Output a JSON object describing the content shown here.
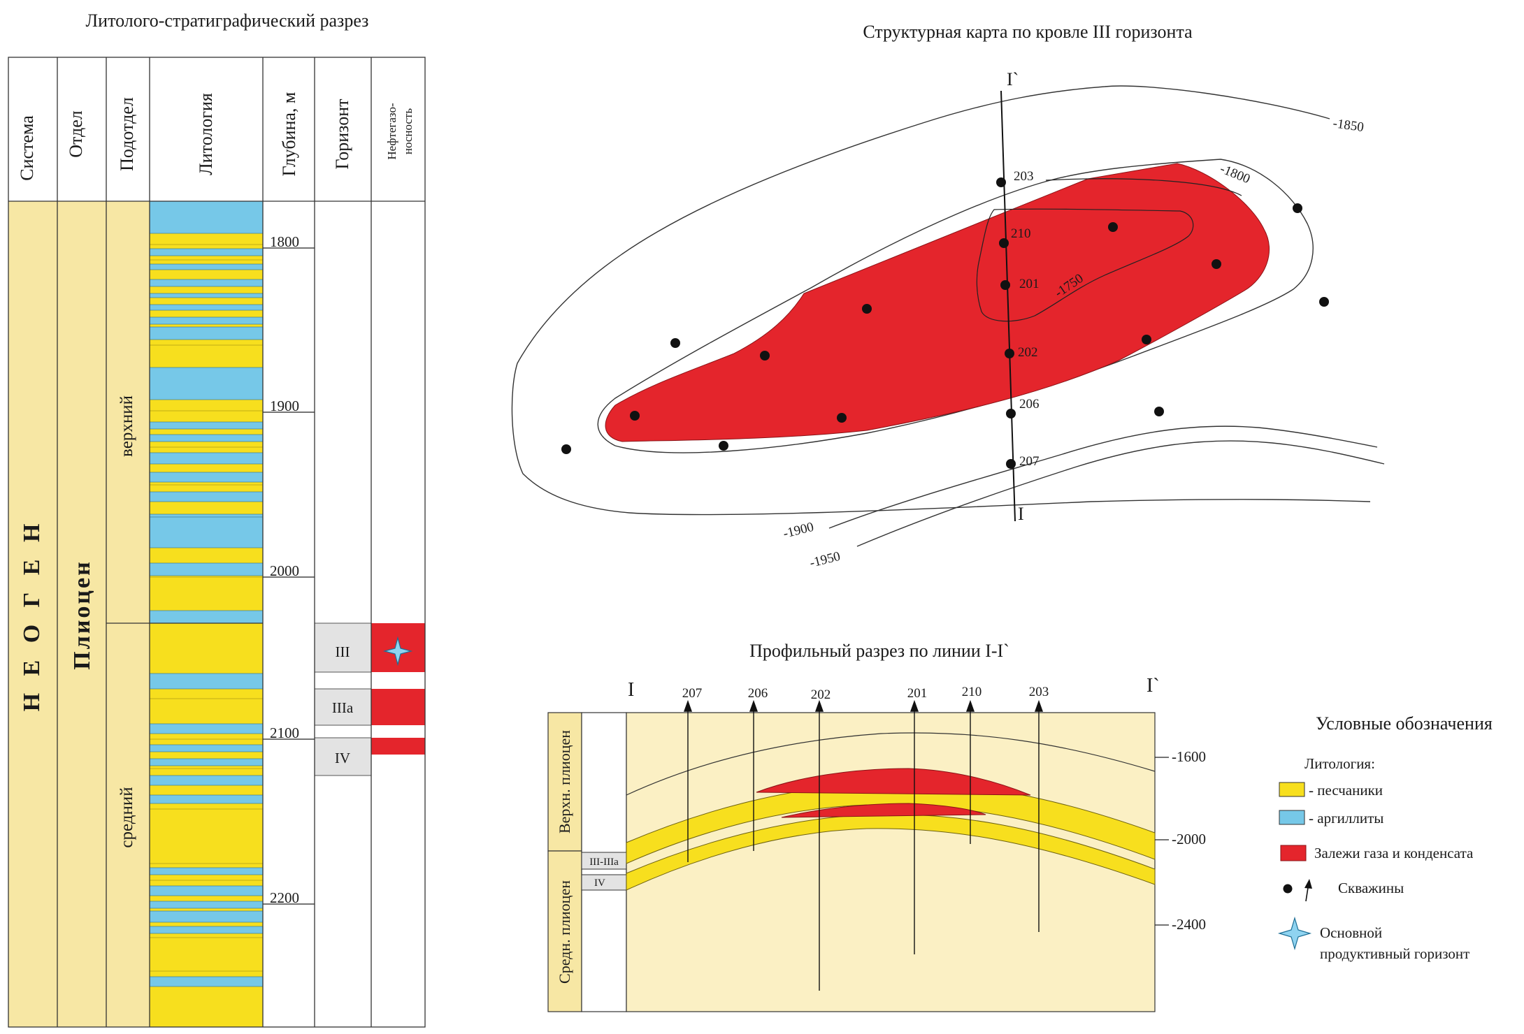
{
  "column": {
    "title": "Литолого-стратиграфический разрез",
    "headers": {
      "system": "Система",
      "series": "Отдел",
      "subseries": "Подотдел",
      "lithology": "Литология",
      "depth": "Глубина, м",
      "horizon": "Горизонт",
      "oil_gas_1": "Нефтегазо-",
      "oil_gas_2": "носность"
    },
    "system_label": "Н Е О Г Е Н",
    "series_label": "Плиоцен",
    "subseries": [
      "верхний",
      "средний"
    ],
    "depth_ticks": [
      "1800",
      "1900",
      "2000",
      "2100",
      "2200"
    ],
    "horizons": [
      "III",
      "IIIa",
      "IV"
    ]
  },
  "map": {
    "title": "Структурная карта по кровле III горизонта",
    "contours": [
      "-1850",
      "-1800",
      "-1750",
      "-1900",
      "-1950"
    ],
    "wells": [
      "203",
      "210",
      "201",
      "202",
      "206",
      "207"
    ],
    "line_start": "I",
    "line_end": "I`"
  },
  "profile": {
    "title": "Профильный разрез по линии I-I`",
    "start": "I",
    "end": "I`",
    "wells": [
      "207",
      "206",
      "202",
      "201",
      "210",
      "203"
    ],
    "units": [
      "Верхн. плиоцен",
      "Средн. плиоцен"
    ],
    "horizons": [
      "III-IIIa",
      "IV"
    ],
    "depths": [
      "-1600",
      "-2000",
      "-2400"
    ]
  },
  "legend": {
    "title": "Условные обозначения",
    "lithology_heading": "Литология:",
    "items": [
      "- песчаники",
      "- аргиллиты",
      "Залежи газа и конденсата",
      "Скважины"
    ],
    "star_line1": "Основной",
    "star_line2": "продуктивный горизонт"
  },
  "colors": {
    "sand": "#f7df1e",
    "clay": "#76c8e8",
    "gas": "#e4252c",
    "pale": "#fbf0c4",
    "tan": "#f7e7a4",
    "grey": "#e3e3e3"
  }
}
